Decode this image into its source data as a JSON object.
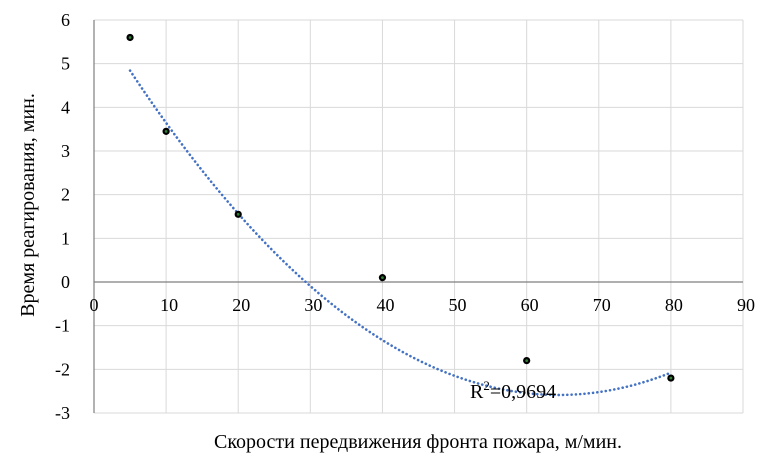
{
  "chart_data": {
    "type": "scatter",
    "xlabel": "Скорости передвижения фронта пожара, м/мин.",
    "ylabel": "Время реагирования, мин.",
    "xlim": [
      0,
      90
    ],
    "ylim": [
      -3,
      6
    ],
    "x_ticks": [
      0,
      10,
      20,
      30,
      40,
      50,
      60,
      70,
      80,
      90
    ],
    "y_ticks": [
      -3,
      -2,
      -1,
      0,
      1,
      2,
      3,
      4,
      5,
      6
    ],
    "grid": true,
    "points": [
      {
        "x": 5,
        "y": 5.6
      },
      {
        "x": 10,
        "y": 3.45
      },
      {
        "x": 20,
        "y": 1.55
      },
      {
        "x": 40,
        "y": 0.1
      },
      {
        "x": 60,
        "y": -1.8
      },
      {
        "x": 80,
        "y": -2.2
      }
    ],
    "trendline": {
      "type": "polynomial",
      "style": "dotted",
      "color": "#4472c4",
      "x_range": [
        5,
        80
      ],
      "coefficients": [
        6.144,
        -0.271,
        0.002103
      ],
      "r_squared": {
        "prefix": "R",
        "sup": "2",
        "suffix": "=0,9694"
      }
    },
    "marker_color": "#000000",
    "marker_inner_color": "#2e7d32"
  }
}
